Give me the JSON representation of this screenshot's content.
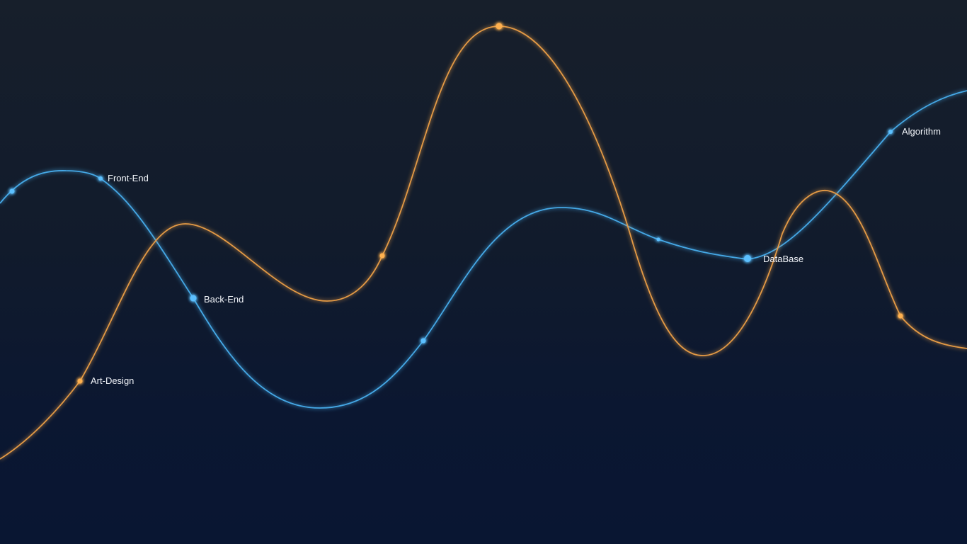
{
  "colors": {
    "background_top": "#171f2b",
    "background_bottom": "#091632",
    "blue_curve": "#45a8e6",
    "orange_curve": "#e49a45",
    "label_text": "#f2f5fa"
  },
  "curves": [
    {
      "name": "blue",
      "color_key": "blue_curve"
    },
    {
      "name": "orange",
      "color_key": "orange_curve"
    }
  ],
  "labels": {
    "front_end": "Front-End",
    "back_end": "Back-End",
    "art_design": "Art-Design",
    "database": "DataBase",
    "algorithm": "Algorithm"
  }
}
